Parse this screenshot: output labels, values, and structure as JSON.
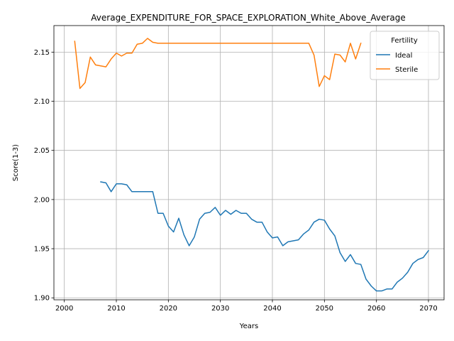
{
  "chart_data": {
    "type": "line",
    "title": "Average_EXPENDITURE_FOR_SPACE_EXPLORATION_White_Above_Average",
    "xlabel": "Years",
    "ylabel": "Score(1-3)",
    "xlim": [
      1998,
      2073
    ],
    "ylim": [
      1.898,
      2.177
    ],
    "x_ticks": [
      2000,
      2010,
      2020,
      2030,
      2040,
      2050,
      2060,
      2070
    ],
    "y_ticks": [
      1.9,
      1.95,
      2.0,
      2.05,
      2.1,
      2.15
    ],
    "x_tick_labels": [
      "2000",
      "2010",
      "2020",
      "2030",
      "2040",
      "2050",
      "2060",
      "2070"
    ],
    "y_tick_labels": [
      "1.90",
      "1.95",
      "2.00",
      "2.05",
      "2.10",
      "2.15"
    ],
    "grid": true,
    "legend": {
      "title": "Fertility",
      "placement": "top-right"
    },
    "series": [
      {
        "name": "Ideal",
        "color": "#1f77b4",
        "x": [
          2007,
          2008,
          2009,
          2010,
          2011,
          2012,
          2013,
          2014,
          2015,
          2016,
          2017,
          2018,
          2019,
          2020,
          2021,
          2022,
          2023,
          2024,
          2025,
          2026,
          2027,
          2028,
          2029,
          2030,
          2031,
          2032,
          2033,
          2034,
          2035,
          2036,
          2037,
          2038,
          2039,
          2040,
          2041,
          2042,
          2043,
          2044,
          2045,
          2046,
          2047,
          2048,
          2049,
          2050,
          2051,
          2052,
          2053,
          2054,
          2055,
          2056,
          2057,
          2058,
          2059,
          2060,
          2061,
          2062,
          2063,
          2064,
          2065,
          2066,
          2067,
          2068,
          2069,
          2070
        ],
        "values": [
          2.018,
          2.017,
          2.008,
          2.016,
          2.016,
          2.015,
          2.008,
          2.008,
          2.008,
          2.008,
          2.008,
          1.986,
          1.986,
          1.973,
          1.967,
          1.981,
          1.964,
          1.953,
          1.962,
          1.98,
          1.986,
          1.987,
          1.992,
          1.984,
          1.989,
          1.985,
          1.989,
          1.986,
          1.986,
          1.98,
          1.977,
          1.977,
          1.967,
          1.961,
          1.962,
          1.953,
          1.957,
          1.958,
          1.959,
          1.965,
          1.969,
          1.977,
          1.98,
          1.979,
          1.97,
          1.963,
          1.946,
          1.937,
          1.944,
          1.935,
          1.934,
          1.919,
          1.912,
          1.907,
          1.907,
          1.909,
          1.909,
          1.916,
          1.92,
          1.926,
          1.935,
          1.939,
          1.941,
          1.948
        ]
      },
      {
        "name": "Sterile",
        "color": "#ff7f0e",
        "x": [
          2002,
          2003,
          2004,
          2005,
          2006,
          2007,
          2008,
          2009,
          2010,
          2011,
          2012,
          2013,
          2014,
          2015,
          2016,
          2017,
          2018,
          2019,
          2020,
          2021,
          2022,
          2023,
          2024,
          2025,
          2026,
          2027,
          2028,
          2029,
          2030,
          2031,
          2032,
          2033,
          2034,
          2035,
          2036,
          2037,
          2038,
          2039,
          2040,
          2041,
          2042,
          2043,
          2044,
          2045,
          2046,
          2047,
          2048,
          2049,
          2050,
          2051,
          2052,
          2053,
          2054,
          2055,
          2056,
          2057
        ],
        "values": [
          2.161,
          2.113,
          2.119,
          2.145,
          2.137,
          2.136,
          2.135,
          2.143,
          2.149,
          2.146,
          2.149,
          2.149,
          2.158,
          2.159,
          2.164,
          2.16,
          2.159,
          2.159,
          2.159,
          2.159,
          2.159,
          2.159,
          2.159,
          2.159,
          2.159,
          2.159,
          2.159,
          2.159,
          2.159,
          2.159,
          2.159,
          2.159,
          2.159,
          2.159,
          2.159,
          2.159,
          2.159,
          2.159,
          2.159,
          2.159,
          2.159,
          2.159,
          2.159,
          2.159,
          2.159,
          2.159,
          2.147,
          2.115,
          2.126,
          2.122,
          2.148,
          2.147,
          2.14,
          2.159,
          2.143,
          2.159
        ]
      }
    ]
  }
}
